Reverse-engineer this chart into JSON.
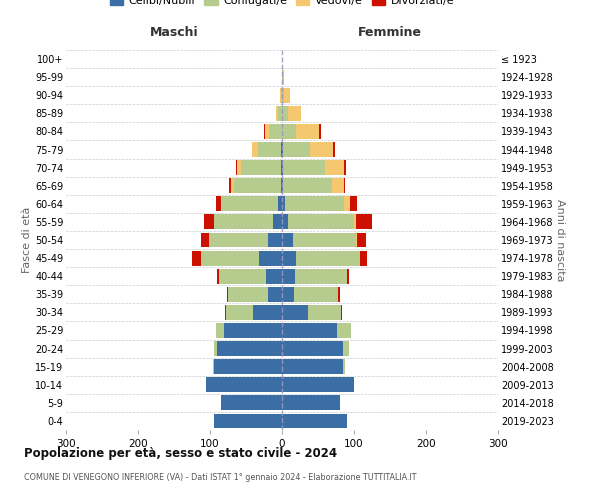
{
  "age_groups": [
    "0-4",
    "5-9",
    "10-14",
    "15-19",
    "20-24",
    "25-29",
    "30-34",
    "35-39",
    "40-44",
    "45-49",
    "50-54",
    "55-59",
    "60-64",
    "65-69",
    "70-74",
    "75-79",
    "80-84",
    "85-89",
    "90-94",
    "95-99",
    "100+"
  ],
  "birth_years": [
    "2019-2023",
    "2014-2018",
    "2009-2013",
    "2004-2008",
    "1999-2003",
    "1994-1998",
    "1989-1993",
    "1984-1988",
    "1979-1983",
    "1974-1978",
    "1969-1973",
    "1964-1968",
    "1959-1963",
    "1954-1958",
    "1949-1953",
    "1944-1948",
    "1939-1943",
    "1934-1938",
    "1929-1933",
    "1924-1928",
    "≤ 1923"
  ],
  "maschi": {
    "celibi": [
      95,
      85,
      105,
      95,
      90,
      80,
      40,
      20,
      22,
      32,
      20,
      12,
      5,
      2,
      2,
      1,
      0,
      0,
      0,
      0,
      0
    ],
    "coniugati": [
      0,
      0,
      0,
      1,
      4,
      12,
      38,
      55,
      65,
      80,
      82,
      82,
      78,
      65,
      55,
      32,
      18,
      6,
      2,
      0,
      0
    ],
    "vedovi": [
      0,
      0,
      0,
      0,
      0,
      0,
      0,
      0,
      0,
      0,
      0,
      1,
      2,
      4,
      5,
      8,
      6,
      2,
      1,
      0,
      0
    ],
    "divorziati": [
      0,
      0,
      0,
      0,
      0,
      0,
      1,
      2,
      3,
      13,
      10,
      14,
      6,
      2,
      2,
      1,
      1,
      0,
      0,
      0,
      0
    ]
  },
  "femmine": {
    "nubili": [
      90,
      80,
      100,
      85,
      85,
      76,
      36,
      16,
      18,
      20,
      15,
      8,
      4,
      2,
      2,
      1,
      0,
      0,
      0,
      0,
      0
    ],
    "coniugate": [
      0,
      0,
      0,
      2,
      8,
      20,
      46,
      62,
      72,
      88,
      88,
      92,
      82,
      68,
      58,
      38,
      20,
      8,
      3,
      1,
      0
    ],
    "vedove": [
      0,
      0,
      0,
      0,
      0,
      0,
      0,
      0,
      0,
      0,
      1,
      3,
      8,
      16,
      26,
      32,
      32,
      18,
      8,
      2,
      0
    ],
    "divorziate": [
      0,
      0,
      0,
      0,
      0,
      0,
      1,
      2,
      3,
      10,
      12,
      22,
      10,
      2,
      3,
      3,
      2,
      1,
      0,
      0,
      0
    ]
  },
  "colors": {
    "celibi_nubili": "#3a6ea5",
    "coniugati": "#b5cc8e",
    "vedovi": "#f5c76e",
    "divorziati": "#cc1100"
  },
  "xlim": 300,
  "title": "Popolazione per età, sesso e stato civile - 2024",
  "subtitle": "COMUNE DI VENEGONO INFERIORE (VA) - Dati ISTAT 1° gennaio 2024 - Elaborazione TUTTITALIA.IT",
  "ylabel_left": "Fasce di età",
  "ylabel_right": "Anni di nascita",
  "legend_labels": [
    "Celibi/Nubili",
    "Coniugati/e",
    "Vedovi/e",
    "Divorziati/e"
  ],
  "maschi_label": "Maschi",
  "femmine_label": "Femmine",
  "xticks": [
    -300,
    -200,
    -100,
    0,
    100,
    200,
    300
  ]
}
